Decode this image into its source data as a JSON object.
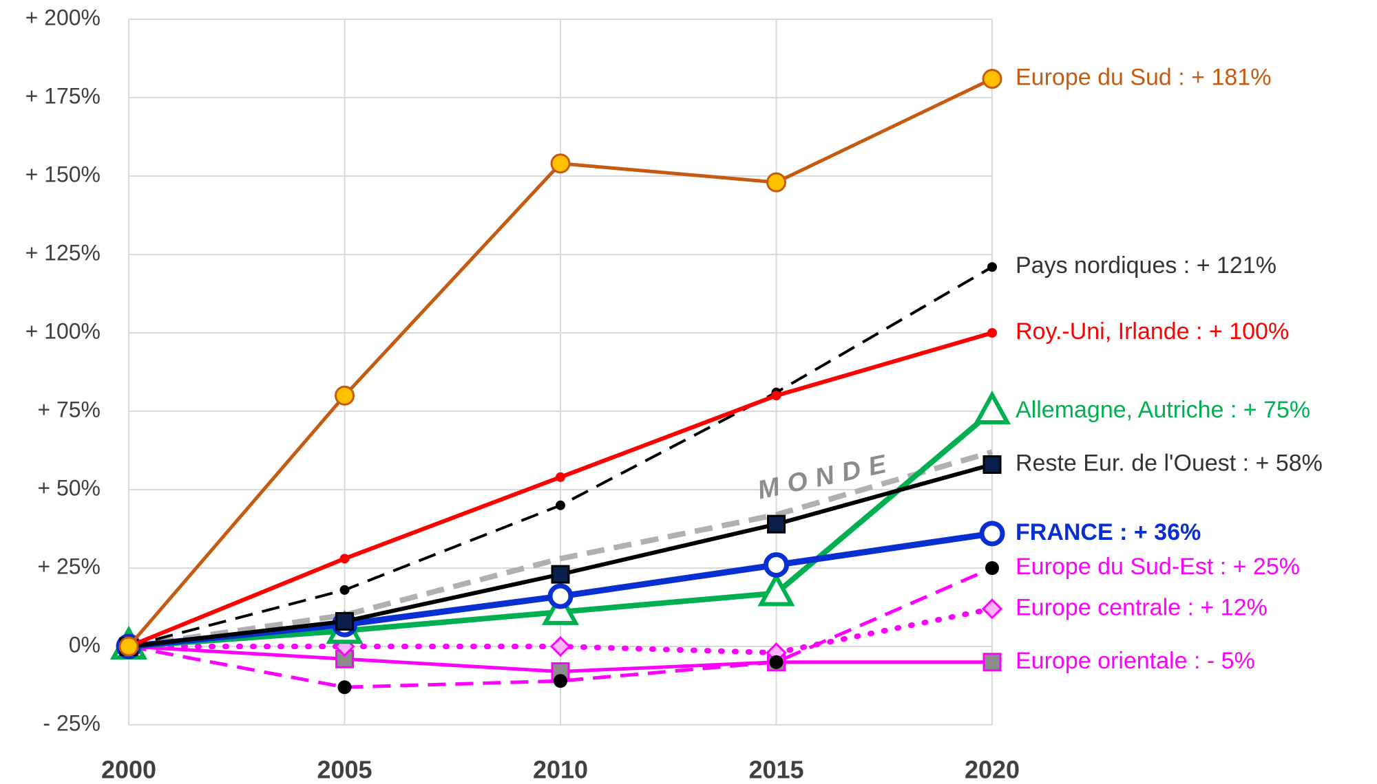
{
  "chart_data": {
    "type": "line",
    "x": [
      2000,
      2005,
      2010,
      2015,
      2020
    ],
    "xlim": [
      2000,
      2020
    ],
    "xticks": [
      2000,
      2005,
      2010,
      2015,
      2020
    ],
    "ylim": [
      -25,
      200
    ],
    "yticks": [
      {
        "value": -25,
        "label": "- 25%"
      },
      {
        "value": 0,
        "label": "0%"
      },
      {
        "value": 25,
        "label": "+ 25%"
      },
      {
        "value": 50,
        "label": "+ 50%"
      },
      {
        "value": 75,
        "label": "+ 75%"
      },
      {
        "value": 100,
        "label": "+ 100%"
      },
      {
        "value": 125,
        "label": "+ 125%"
      },
      {
        "value": 150,
        "label": "+ 150%"
      },
      {
        "value": 175,
        "label": "+ 175%"
      },
      {
        "value": 200,
        "label": "+ 200%"
      }
    ],
    "grid": true,
    "series": [
      {
        "name": "MONDE",
        "color": "#b0b0b0",
        "dash": "dashed",
        "width": 8,
        "values": [
          0,
          10,
          28,
          42,
          62
        ],
        "label_style": "rotated"
      },
      {
        "name": "Europe orientale : - 5%",
        "color": "#ff00ff",
        "width": 5,
        "marker": "square",
        "marker_fill": "#8c8c8c",
        "label_color": "#ff00ff",
        "values": [
          0,
          -4,
          -8,
          -5,
          -5
        ]
      },
      {
        "name": "Europe centrale : + 12%",
        "color": "#ff00ff",
        "dash": "dotted",
        "width": 8,
        "marker": "diamond",
        "marker_fill": "#ffb3ff",
        "label_color": "#ff00ff",
        "values": [
          0,
          0,
          0,
          -2,
          12
        ]
      },
      {
        "name": "Europe du Sud-Est : + 25%",
        "color": "#ff00ff",
        "dash": "dashed",
        "width": 5,
        "marker": "dot",
        "marker_fill": "#000000",
        "label_color": "#ff00ff",
        "values": [
          0,
          -13,
          -11,
          -5,
          25
        ]
      },
      {
        "name": "Allemagne, Autriche : + 75%",
        "color": "#00b050",
        "width": 8,
        "marker": "triangle",
        "marker_fill": "#ffffff",
        "label_color": "#00b050",
        "values": [
          0,
          5,
          11,
          17,
          75
        ]
      },
      {
        "name": "FRANCE : + 36%",
        "color": "#0a2fd0",
        "width": 9,
        "marker": "ring",
        "marker_fill": "#ffffff",
        "label_color": "#0a2fd0",
        "label_bold": true,
        "values": [
          0,
          7,
          16,
          26,
          36
        ]
      },
      {
        "name": "Reste Eur. de l'Ouest : + 58%",
        "color": "#000000",
        "width": 6,
        "marker": "square",
        "marker_fill": "#0b1f4d",
        "label_color": "#333333",
        "values": [
          0,
          8,
          23,
          39,
          58
        ]
      },
      {
        "name": "Pays nordiques : + 121%",
        "color": "#000000",
        "dash": "dashed",
        "width": 4,
        "marker": "smalldot",
        "marker_fill": "#000000",
        "label_color": "#333333",
        "values": [
          0,
          18,
          45,
          81,
          121
        ]
      },
      {
        "name": "Roy.-Uni, Irlande : + 100%",
        "color": "#ff0000",
        "width": 6,
        "marker": "smalldot",
        "marker_fill": "#ff0000",
        "label_color": "#ff0000",
        "values": [
          0,
          28,
          54,
          80,
          100
        ]
      },
      {
        "name": "Europe du Sud : + 181%",
        "color": "#c55a11",
        "width": 5,
        "marker": "circle",
        "marker_fill": "#ffc000",
        "label_color": "#c55a11",
        "values": [
          0,
          80,
          154,
          148,
          181
        ]
      }
    ]
  }
}
